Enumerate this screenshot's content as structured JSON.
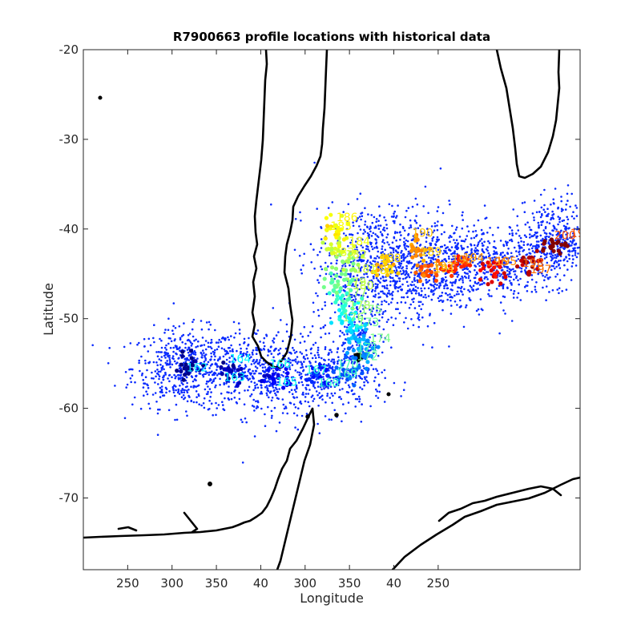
{
  "chart_data": {
    "type": "scatter",
    "title": "R7900663 profile locations with historical data",
    "xlabel": "Longitude",
    "ylabel": "Latitude",
    "xlim": [
      -148,
      -36
    ],
    "ylim": [
      -78,
      -20
    ],
    "x_tick_labels": [
      "250",
      "300",
      "350",
      "40",
      "300",
      "350",
      "40",
      "250"
    ],
    "y_ticks": [
      -20,
      -30,
      -40,
      -50,
      -60,
      -70
    ],
    "y_tick_labels": [
      "-20",
      "-30",
      "-40",
      "-50",
      "-60",
      "-70"
    ],
    "grid": false,
    "historical_color": "#0a2bff",
    "colormap": "jet",
    "profile_track": [
      {
        "lon": -91,
        "lat": -40
      },
      {
        "lon": -90,
        "lat": -42
      },
      {
        "lon": -89,
        "lat": -44
      },
      {
        "lon": -90,
        "lat": -46
      },
      {
        "lon": -89,
        "lat": -48
      },
      {
        "lon": -88,
        "lat": -50
      },
      {
        "lon": -86,
        "lat": -52
      },
      {
        "lon": -85,
        "lat": -54
      },
      {
        "lon": -88,
        "lat": -56
      },
      {
        "lon": -95,
        "lat": -56.5
      },
      {
        "lon": -105,
        "lat": -56.5
      },
      {
        "lon": -115,
        "lat": -56
      },
      {
        "lon": -124,
        "lat": -55.5
      },
      {
        "lon": -80,
        "lat": -44
      },
      {
        "lon": -73,
        "lat": -42
      },
      {
        "lon": -70,
        "lat": -45
      },
      {
        "lon": -63,
        "lat": -44
      },
      {
        "lon": -55,
        "lat": -45
      },
      {
        "lon": -48,
        "lat": -44
      },
      {
        "lon": -41,
        "lat": -42
      }
    ],
    "profile_number_labels": [
      "162",
      "163",
      "164",
      "165",
      "166",
      "167",
      "168",
      "169",
      "170",
      "171",
      "172",
      "173",
      "174",
      "175",
      "176",
      "177",
      "178",
      "179",
      "180",
      "181",
      "182",
      "183",
      "184",
      "185",
      "186",
      "187",
      "188",
      "189",
      "190",
      "191",
      "192",
      "193",
      "194",
      "195",
      "196",
      "197",
      "198",
      "199",
      "200"
    ]
  }
}
